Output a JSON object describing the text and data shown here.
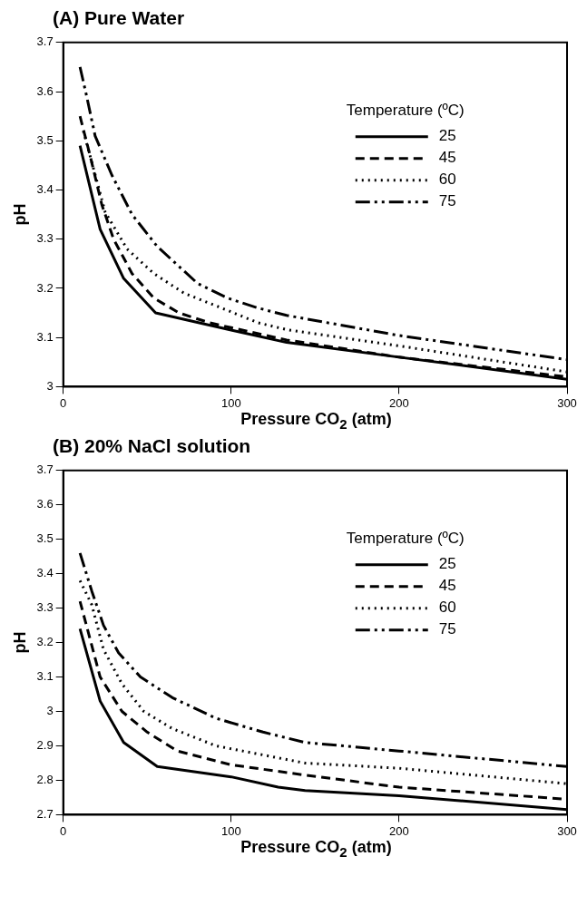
{
  "chart_data": [
    {
      "type": "line",
      "title": "(A) Pure Water",
      "xlabel": "Pressure CO$_{2}$  (atm)",
      "ylabel": "pH",
      "legend_title": "Temperature (ºC)",
      "legend": "top right",
      "grid": false,
      "marker": "none",
      "xlim": [
        0,
        300
      ],
      "xticks": [
        0,
        100,
        200,
        300
      ],
      "ylim": [
        3,
        3.7
      ],
      "yticks": [
        3,
        3.1,
        3.2,
        3.3,
        3.4,
        3.5,
        3.6,
        3.7
      ],
      "series": [
        {
          "name": "25",
          "color": "#000000",
          "line_style": "solid",
          "x": [
            10,
            22,
            36,
            55,
            100,
            133,
            200,
            300
          ],
          "values": [
            3.49,
            3.32,
            3.22,
            3.15,
            3.115,
            3.09,
            3.06,
            3.015
          ]
        },
        {
          "name": "45",
          "color": "#000000",
          "line_style": "dashed",
          "x": [
            10,
            16,
            23,
            30,
            41,
            54,
            69,
            87,
            100,
            133,
            200,
            300
          ],
          "values": [
            3.55,
            3.47,
            3.37,
            3.3,
            3.23,
            3.18,
            3.15,
            3.13,
            3.12,
            3.095,
            3.06,
            3.02
          ]
        },
        {
          "name": "60",
          "color": "#000000",
          "line_style": "dotted",
          "x": [
            12,
            25,
            38,
            54,
            72,
            98,
            116,
            133,
            200,
            300
          ],
          "values": [
            3.52,
            3.355,
            3.28,
            3.23,
            3.19,
            3.155,
            3.13,
            3.116,
            3.083,
            3.03
          ]
        },
        {
          "name": "75",
          "color": "#000000",
          "line_style": "dashdot",
          "x": [
            10,
            14,
            19,
            29,
            41,
            56,
            80,
            98,
            116,
            133,
            200,
            300
          ],
          "values": [
            3.65,
            3.59,
            3.51,
            3.43,
            3.35,
            3.285,
            3.21,
            3.18,
            3.16,
            3.145,
            3.104,
            3.055
          ]
        }
      ]
    },
    {
      "type": "line",
      "title": "(B) 20% NaCl solution",
      "xlabel": "Pressure CO$_{2}$  (atm)",
      "ylabel": "pH",
      "legend_title": "Temperature (ºC)",
      "legend": "top right",
      "grid": false,
      "marker": "none",
      "xlim": [
        0,
        300
      ],
      "xticks": [
        0,
        100,
        200,
        300
      ],
      "ylim": [
        2.7,
        3.7
      ],
      "yticks": [
        2.7,
        2.8,
        2.9,
        3,
        3.1,
        3.2,
        3.3,
        3.4,
        3.5,
        3.6,
        3.7
      ],
      "series": [
        {
          "name": "25",
          "color": "#000000",
          "line_style": "solid",
          "x": [
            10,
            22,
            36,
            56,
            100,
            128,
            144,
            200,
            300
          ],
          "values": [
            3.24,
            3.03,
            2.91,
            2.84,
            2.81,
            2.78,
            2.77,
            2.755,
            2.715
          ]
        },
        {
          "name": "45",
          "color": "#000000",
          "line_style": "dashed",
          "x": [
            10,
            22,
            35,
            50,
            68,
            100,
            144,
            200,
            300
          ],
          "values": [
            3.32,
            3.1,
            3.0,
            2.94,
            2.885,
            2.845,
            2.815,
            2.78,
            2.745
          ]
        },
        {
          "name": "60",
          "color": "#000000",
          "line_style": "dotted",
          "x": [
            10,
            17,
            24,
            35,
            48,
            65,
            91,
            144,
            200,
            300
          ],
          "values": [
            3.38,
            3.31,
            3.18,
            3.08,
            3.0,
            2.95,
            2.9,
            2.85,
            2.835,
            2.79
          ]
        },
        {
          "name": "75",
          "color": "#000000",
          "line_style": "dashdot",
          "x": [
            10,
            17,
            24,
            33,
            46,
            65,
            91,
            119,
            144,
            200,
            300
          ],
          "values": [
            3.46,
            3.35,
            3.25,
            3.17,
            3.1,
            3.04,
            2.98,
            2.94,
            2.91,
            2.885,
            2.84
          ]
        }
      ]
    }
  ]
}
